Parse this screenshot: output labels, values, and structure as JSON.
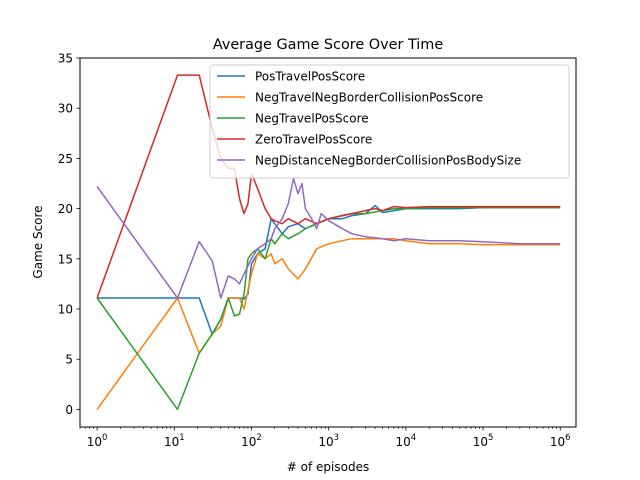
{
  "chart_data": {
    "type": "line",
    "title": "Average Game Score Over Time",
    "xlabel": "# of episodes",
    "ylabel": "Game Score",
    "xscale": "log",
    "xlim": [
      0.6,
      1600000
    ],
    "ylim": [
      -1.75,
      35
    ],
    "yticks": [
      0,
      5,
      10,
      15,
      20,
      25,
      30,
      35
    ],
    "xticks": [
      {
        "value": 1,
        "base": "10",
        "exp": "0"
      },
      {
        "value": 10,
        "base": "10",
        "exp": "1"
      },
      {
        "value": 100,
        "base": "10",
        "exp": "2"
      },
      {
        "value": 1000,
        "base": "10",
        "exp": "3"
      },
      {
        "value": 10000,
        "base": "10",
        "exp": "4"
      },
      {
        "value": 100000,
        "base": "10",
        "exp": "5"
      },
      {
        "value": 1000000,
        "base": "10",
        "exp": "6"
      }
    ],
    "grid": false,
    "legend_position": "upper-right",
    "series": [
      {
        "name": "PosTravelPosScore",
        "color": "#1f77b4",
        "points": [
          [
            1,
            11.1
          ],
          [
            11,
            11.1
          ],
          [
            21,
            11.1
          ],
          [
            31,
            7.5
          ],
          [
            40,
            9
          ],
          [
            50,
            11.1
          ],
          [
            60,
            11.1
          ],
          [
            70,
            11.1
          ],
          [
            80,
            11
          ],
          [
            90,
            11.5
          ],
          [
            100,
            14.5
          ],
          [
            120,
            15.5
          ],
          [
            150,
            16
          ],
          [
            180,
            19
          ],
          [
            200,
            18.5
          ],
          [
            250,
            17.5
          ],
          [
            300,
            18.2
          ],
          [
            400,
            18.5
          ],
          [
            500,
            18
          ],
          [
            700,
            18.5
          ],
          [
            1000,
            19
          ],
          [
            1500,
            19
          ],
          [
            2000,
            19.3
          ],
          [
            3000,
            19.5
          ],
          [
            4000,
            20.3
          ],
          [
            5000,
            19.6
          ],
          [
            7000,
            19.8
          ],
          [
            10000,
            20
          ],
          [
            20000,
            20
          ],
          [
            50000,
            20
          ],
          [
            100000,
            20.1
          ],
          [
            300000,
            20.1
          ],
          [
            1000000,
            20.1
          ]
        ]
      },
      {
        "name": "NegTravelNegBorderCollisionPosScore",
        "color": "#ff7f0e",
        "points": [
          [
            1,
            0
          ],
          [
            11,
            11.1
          ],
          [
            21,
            5.6
          ],
          [
            31,
            7.5
          ],
          [
            40,
            8.3
          ],
          [
            50,
            11.1
          ],
          [
            60,
            11.1
          ],
          [
            70,
            11.1
          ],
          [
            80,
            10
          ],
          [
            100,
            13.5
          ],
          [
            120,
            15.5
          ],
          [
            150,
            15
          ],
          [
            180,
            15.5
          ],
          [
            200,
            14.5
          ],
          [
            250,
            15
          ],
          [
            300,
            14
          ],
          [
            400,
            13
          ],
          [
            500,
            14
          ],
          [
            700,
            16
          ],
          [
            1000,
            16.5
          ],
          [
            1500,
            16.8
          ],
          [
            2000,
            17
          ],
          [
            3000,
            17
          ],
          [
            5000,
            17
          ],
          [
            7000,
            17
          ],
          [
            10000,
            16.8
          ],
          [
            20000,
            16.5
          ],
          [
            50000,
            16.5
          ],
          [
            100000,
            16.4
          ],
          [
            300000,
            16.4
          ],
          [
            1000000,
            16.4
          ]
        ]
      },
      {
        "name": "NegTravelPosScore",
        "color": "#2ca02c",
        "points": [
          [
            1,
            11.1
          ],
          [
            11,
            0
          ],
          [
            21,
            5.6
          ],
          [
            31,
            7.5
          ],
          [
            40,
            9
          ],
          [
            50,
            11.1
          ],
          [
            60,
            9.3
          ],
          [
            70,
            9.5
          ],
          [
            80,
            11.5
          ],
          [
            90,
            15
          ],
          [
            100,
            15.5
          ],
          [
            120,
            16
          ],
          [
            150,
            15
          ],
          [
            180,
            17
          ],
          [
            200,
            16.5
          ],
          [
            250,
            17.5
          ],
          [
            300,
            17
          ],
          [
            400,
            17.5
          ],
          [
            500,
            18
          ],
          [
            700,
            18.5
          ],
          [
            1000,
            19
          ],
          [
            1500,
            19.3
          ],
          [
            2000,
            19.5
          ],
          [
            3000,
            19.5
          ],
          [
            5000,
            19.8
          ],
          [
            7000,
            20
          ],
          [
            10000,
            20
          ],
          [
            20000,
            20.1
          ],
          [
            50000,
            20.1
          ],
          [
            100000,
            20.1
          ],
          [
            300000,
            20.1
          ],
          [
            1000000,
            20.1
          ]
        ]
      },
      {
        "name": "ZeroTravelPosScore",
        "color": "#d62728",
        "points": [
          [
            1,
            11.1
          ],
          [
            11,
            33.3
          ],
          [
            21,
            33.3
          ],
          [
            31,
            28
          ],
          [
            40,
            25
          ],
          [
            50,
            24
          ],
          [
            60,
            24
          ],
          [
            70,
            21
          ],
          [
            80,
            19.5
          ],
          [
            90,
            20.5
          ],
          [
            100,
            23.5
          ],
          [
            120,
            22
          ],
          [
            150,
            20
          ],
          [
            180,
            19
          ],
          [
            200,
            18.8
          ],
          [
            250,
            18.5
          ],
          [
            300,
            19
          ],
          [
            400,
            18.5
          ],
          [
            500,
            19
          ],
          [
            700,
            18.5
          ],
          [
            1000,
            19
          ],
          [
            1500,
            19.3
          ],
          [
            2000,
            19.5
          ],
          [
            3000,
            19.8
          ],
          [
            4000,
            20
          ],
          [
            5000,
            19.8
          ],
          [
            7000,
            20.2
          ],
          [
            10000,
            20.1
          ],
          [
            20000,
            20.2
          ],
          [
            50000,
            20.2
          ],
          [
            100000,
            20.2
          ],
          [
            300000,
            20.2
          ],
          [
            1000000,
            20.2
          ]
        ]
      },
      {
        "name": "NegDistanceNegBorderCollisionPosBodySize",
        "color": "#9467bd",
        "points": [
          [
            1,
            22.2
          ],
          [
            11,
            11.1
          ],
          [
            21,
            16.7
          ],
          [
            31,
            14.8
          ],
          [
            40,
            11.1
          ],
          [
            50,
            13.3
          ],
          [
            60,
            13
          ],
          [
            70,
            12.5
          ],
          [
            80,
            13.5
          ],
          [
            100,
            15
          ],
          [
            120,
            16
          ],
          [
            150,
            16.5
          ],
          [
            180,
            17
          ],
          [
            200,
            18
          ],
          [
            250,
            19
          ],
          [
            300,
            20.5
          ],
          [
            350,
            23
          ],
          [
            400,
            21.5
          ],
          [
            450,
            22.5
          ],
          [
            500,
            20
          ],
          [
            600,
            19
          ],
          [
            700,
            18
          ],
          [
            800,
            19.5
          ],
          [
            1000,
            18.8
          ],
          [
            1500,
            18
          ],
          [
            2000,
            17.5
          ],
          [
            3000,
            17.2
          ],
          [
            5000,
            17
          ],
          [
            7000,
            16.8
          ],
          [
            10000,
            17
          ],
          [
            20000,
            16.8
          ],
          [
            50000,
            16.8
          ],
          [
            100000,
            16.7
          ],
          [
            300000,
            16.5
          ],
          [
            1000000,
            16.5
          ]
        ]
      }
    ]
  }
}
